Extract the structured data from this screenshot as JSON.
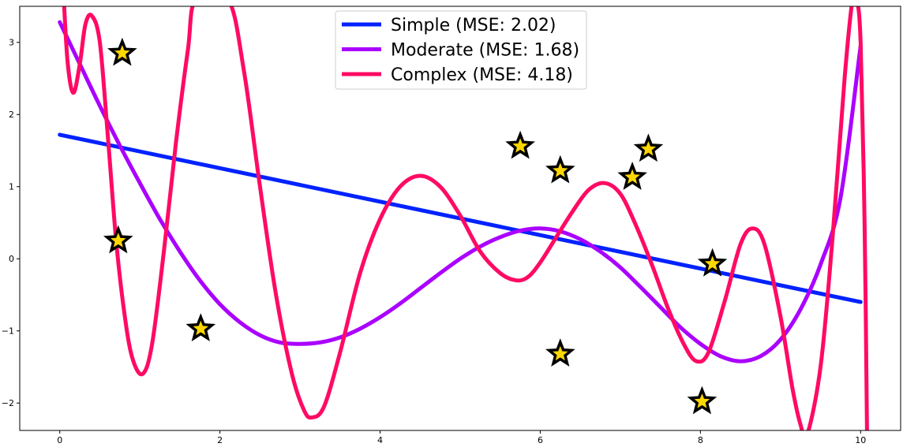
{
  "chart_data": {
    "type": "line",
    "title": "",
    "xlabel": "",
    "ylabel": "",
    "xlim": [
      -0.5,
      10.5
    ],
    "ylim": [
      -2.38,
      3.5
    ],
    "xticks": [
      0,
      2,
      4,
      6,
      8,
      10
    ],
    "yticks": [
      -2,
      -1,
      0,
      1,
      2,
      3
    ],
    "xtick_labels": [
      "0",
      "2",
      "4",
      "6",
      "8",
      "10"
    ],
    "ytick_labels": [
      "−2",
      "−1",
      "0",
      "1",
      "2",
      "3"
    ],
    "grid": false,
    "legend_position": "top-center",
    "series": [
      {
        "name": "Simple (MSE: 2.02)",
        "color": "#0022ff",
        "points": [
          [
            0,
            1.72
          ],
          [
            10,
            -0.6
          ]
        ]
      },
      {
        "name": "Moderate (MSE: 1.68)",
        "color": "#aa00ff",
        "points": [
          [
            0,
            3.28
          ],
          [
            0.25,
            2.7
          ],
          [
            0.5,
            2.12
          ],
          [
            0.75,
            1.57
          ],
          [
            1.0,
            1.05
          ],
          [
            1.25,
            0.55
          ],
          [
            1.5,
            0.1
          ],
          [
            1.75,
            -0.3
          ],
          [
            2.0,
            -0.63
          ],
          [
            2.25,
            -0.88
          ],
          [
            2.5,
            -1.06
          ],
          [
            2.75,
            -1.16
          ],
          [
            3.0,
            -1.18
          ],
          [
            3.25,
            -1.16
          ],
          [
            3.5,
            -1.09
          ],
          [
            3.75,
            -0.97
          ],
          [
            4.0,
            -0.81
          ],
          [
            4.25,
            -0.62
          ],
          [
            4.5,
            -0.41
          ],
          [
            4.75,
            -0.2
          ],
          [
            5.0,
            0.0
          ],
          [
            5.25,
            0.17
          ],
          [
            5.5,
            0.3
          ],
          [
            5.75,
            0.39
          ],
          [
            6.0,
            0.42
          ],
          [
            6.25,
            0.38
          ],
          [
            6.5,
            0.27
          ],
          [
            6.75,
            0.1
          ],
          [
            7.0,
            -0.12
          ],
          [
            7.25,
            -0.39
          ],
          [
            7.5,
            -0.67
          ],
          [
            7.75,
            -0.95
          ],
          [
            8.0,
            -1.18
          ],
          [
            8.25,
            -1.35
          ],
          [
            8.5,
            -1.42
          ],
          [
            8.75,
            -1.35
          ],
          [
            9.0,
            -1.12
          ],
          [
            9.25,
            -0.7
          ],
          [
            9.5,
            -0.08
          ],
          [
            9.75,
            0.85
          ],
          [
            10.0,
            2.95
          ]
        ]
      },
      {
        "name": "Complex (MSE: 4.18)",
        "color": "#ff0a64",
        "points": [
          [
            0.05,
            3.6
          ],
          [
            0.1,
            2.7
          ],
          [
            0.17,
            2.3
          ],
          [
            0.25,
            2.7
          ],
          [
            0.32,
            3.25
          ],
          [
            0.4,
            3.37
          ],
          [
            0.5,
            3.0
          ],
          [
            0.6,
            1.7
          ],
          [
            0.7,
            0.3
          ],
          [
            0.8,
            -0.7
          ],
          [
            0.9,
            -1.35
          ],
          [
            1.03,
            -1.6
          ],
          [
            1.15,
            -1.2
          ],
          [
            1.3,
            0.1
          ],
          [
            1.45,
            1.6
          ],
          [
            1.6,
            2.9
          ],
          [
            1.7,
            3.6
          ],
          [
            2.1,
            3.6
          ],
          [
            2.3,
            2.6
          ],
          [
            2.5,
            1.0
          ],
          [
            2.7,
            -0.5
          ],
          [
            2.9,
            -1.6
          ],
          [
            3.05,
            -2.1
          ],
          [
            3.15,
            -2.2
          ],
          [
            3.3,
            -2.05
          ],
          [
            3.5,
            -1.3
          ],
          [
            3.75,
            -0.2
          ],
          [
            4.0,
            0.55
          ],
          [
            4.25,
            1.0
          ],
          [
            4.5,
            1.15
          ],
          [
            4.75,
            1.0
          ],
          [
            5.0,
            0.6
          ],
          [
            5.25,
            0.1
          ],
          [
            5.5,
            -0.2
          ],
          [
            5.7,
            -0.3
          ],
          [
            5.85,
            -0.25
          ],
          [
            6.0,
            -0.05
          ],
          [
            6.2,
            0.3
          ],
          [
            6.4,
            0.65
          ],
          [
            6.6,
            0.95
          ],
          [
            6.8,
            1.05
          ],
          [
            7.0,
            0.9
          ],
          [
            7.2,
            0.45
          ],
          [
            7.4,
            -0.1
          ],
          [
            7.6,
            -0.7
          ],
          [
            7.8,
            -1.2
          ],
          [
            7.95,
            -1.42
          ],
          [
            8.1,
            -1.3
          ],
          [
            8.3,
            -0.6
          ],
          [
            8.5,
            0.2
          ],
          [
            8.65,
            0.42
          ],
          [
            8.8,
            0.2
          ],
          [
            9.0,
            -0.8
          ],
          [
            9.15,
            -1.8
          ],
          [
            9.25,
            -2.3
          ],
          [
            9.33,
            -2.45
          ],
          [
            9.5,
            -1.5
          ],
          [
            9.65,
            0.3
          ],
          [
            9.8,
            2.5
          ],
          [
            9.9,
            3.6
          ],
          [
            9.95,
            3.6
          ],
          [
            10.0,
            3.0
          ],
          [
            10.05,
            0.5
          ],
          [
            10.08,
            -2.4
          ]
        ]
      }
    ],
    "scatter": {
      "marker": "star",
      "fill_color": "#ffd700",
      "edge_color": "#000000",
      "points": [
        [
          0.78,
          2.85
        ],
        [
          0.73,
          0.25
        ],
        [
          1.76,
          -0.97
        ],
        [
          5.75,
          1.56
        ],
        [
          6.25,
          1.22
        ],
        [
          6.25,
          -1.32
        ],
        [
          7.15,
          1.13
        ],
        [
          7.35,
          1.52
        ],
        [
          8.15,
          -0.07
        ],
        [
          8.02,
          -1.98
        ]
      ]
    }
  }
}
